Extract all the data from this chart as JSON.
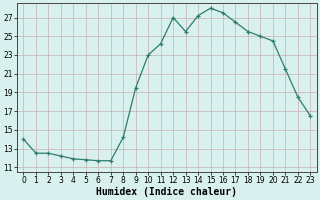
{
  "x": [
    0,
    1,
    2,
    3,
    4,
    5,
    6,
    7,
    8,
    9,
    10,
    11,
    12,
    13,
    14,
    15,
    16,
    17,
    18,
    19,
    20,
    21,
    22,
    23
  ],
  "y": [
    14.0,
    12.5,
    12.5,
    12.2,
    11.9,
    11.8,
    11.7,
    11.7,
    14.2,
    19.5,
    23.0,
    24.2,
    27.0,
    25.5,
    27.2,
    28.0,
    27.5,
    26.5,
    25.5,
    25.0,
    24.5,
    21.5,
    18.5,
    16.5
  ],
  "xlabel": "Humidex (Indice chaleur)",
  "line_color": "#2e7d6e",
  "bg_color": "#d8f0ee",
  "grid_major_color": "#c8b0b0",
  "grid_minor_color": "#dcc8c8",
  "xlim": [
    -0.5,
    23.5
  ],
  "ylim": [
    10.5,
    28.5
  ],
  "yticks": [
    11,
    13,
    15,
    17,
    19,
    21,
    23,
    25,
    27
  ],
  "xticks": [
    0,
    1,
    2,
    3,
    4,
    5,
    6,
    7,
    8,
    9,
    10,
    11,
    12,
    13,
    14,
    15,
    16,
    17,
    18,
    19,
    20,
    21,
    22,
    23
  ],
  "tick_fontsize": 5.5,
  "xlabel_fontsize": 7.0
}
